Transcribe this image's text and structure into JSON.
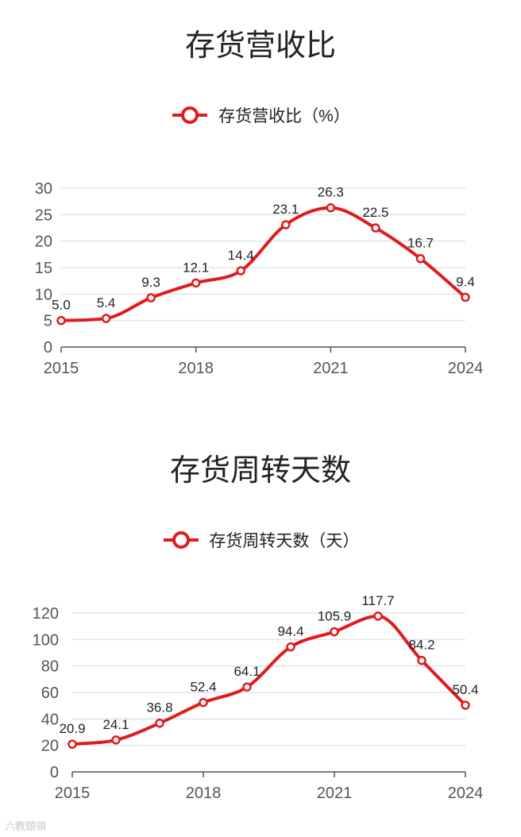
{
  "colors": {
    "series": "#e11b1b",
    "grid": "#dde5ee",
    "axis": "#555555"
  },
  "watermark": "六教頸領",
  "chart_data": [
    {
      "type": "line",
      "title": "存货营收比",
      "legend": "存货营收比（%）",
      "x": [
        2015,
        2016,
        2017,
        2018,
        2019,
        2020,
        2021,
        2022,
        2023,
        2024
      ],
      "x_tick_labels": [
        "2015",
        "2018",
        "2021",
        "2024"
      ],
      "y_ticks": [
        "0",
        "5",
        "10",
        "15",
        "20",
        "25",
        "30"
      ],
      "ylim": [
        0,
        30
      ],
      "grid": true,
      "series": [
        {
          "name": "存货营收比（%）",
          "values": [
            5.0,
            5.4,
            9.3,
            12.1,
            14.4,
            23.1,
            26.3,
            22.5,
            16.7,
            9.4
          ],
          "labels": [
            "5.0",
            "5.4",
            "9.3",
            "12.1",
            "14.4",
            "23.1",
            "26.3",
            "22.5",
            "16.7",
            "9.4"
          ]
        }
      ]
    },
    {
      "type": "line",
      "title": "存货周转天数",
      "legend": "存货周转天数（天）",
      "x": [
        2015,
        2016,
        2017,
        2018,
        2019,
        2020,
        2021,
        2022,
        2023,
        2024
      ],
      "x_tick_labels": [
        "2015",
        "2018",
        "2021",
        "2024"
      ],
      "y_ticks": [
        "0",
        "20",
        "40",
        "60",
        "80",
        "100",
        "120"
      ],
      "ylim": [
        0,
        120
      ],
      "grid": true,
      "series": [
        {
          "name": "存货周转天数（天）",
          "values": [
            20.9,
            24.1,
            36.8,
            52.4,
            64.1,
            94.4,
            105.9,
            117.7,
            84.2,
            50.4
          ],
          "labels": [
            "20.9",
            "24.1",
            "36.8",
            "52.4",
            "64.1",
            "94.4",
            "105.9",
            "117.7",
            "84.2",
            "50.4"
          ]
        }
      ]
    }
  ]
}
